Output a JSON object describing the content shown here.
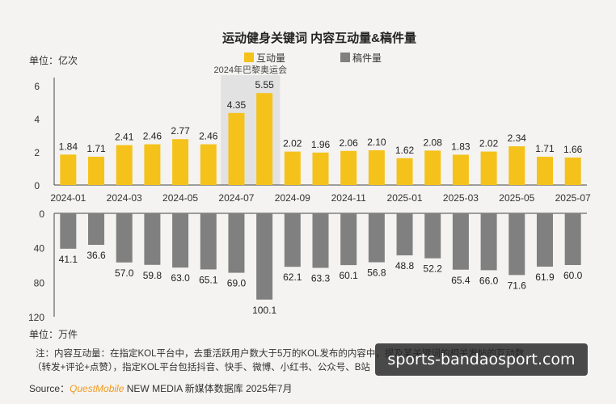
{
  "chart_data": {
    "type": "bar",
    "title": "运动健身关键词 内容互动量&稿件量",
    "categories": [
      "2024-01",
      "2024-02",
      "2024-03",
      "2024-04",
      "2024-05",
      "2024-06",
      "2024-07",
      "2024-08",
      "2024-09",
      "2024-10",
      "2024-11",
      "2024-12",
      "2025-01",
      "2025-02",
      "2025-03",
      "2025-04",
      "2025-05",
      "2025-06",
      "2025-07"
    ],
    "x_tick_labels": [
      "2024-01",
      "2024-03",
      "2024-05",
      "2024-07",
      "2024-09",
      "2024-11",
      "2025-01",
      "2025-03",
      "2025-05",
      "2025-07"
    ],
    "series": [
      {
        "name": "互动量",
        "unit": "单位：亿次",
        "color": "#f5c21b",
        "values": [
          1.84,
          1.71,
          2.41,
          2.46,
          2.77,
          2.46,
          4.35,
          5.55,
          2.02,
          1.96,
          2.06,
          2.1,
          1.62,
          2.08,
          1.83,
          2.02,
          2.34,
          1.71,
          1.66
        ],
        "ylim": [
          0,
          6
        ],
        "yticks": [
          "0",
          "2",
          "4",
          "6"
        ]
      },
      {
        "name": "稿件量",
        "unit": "单位：万件",
        "color": "#808080",
        "values": [
          41.1,
          36.6,
          57.0,
          59.8,
          63.0,
          65.1,
          69.0,
          100.1,
          62.1,
          63.3,
          60.1,
          56.8,
          48.8,
          52.2,
          65.4,
          66.0,
          71.6,
          61.9,
          60.0
        ],
        "ylim": [
          0,
          120
        ],
        "yticks": [
          "0",
          "40",
          "80",
          "120"
        ]
      }
    ],
    "annotation": "2024年巴黎奥运会",
    "highlight_categories": [
      "2024-07",
      "2024-08"
    ],
    "legend_position": "top-center"
  },
  "note": {
    "line1": "注：内容互动量：在指定KOL平台中，去重活跃用户数大于5万的KOL发布的内容中，提及某关键词的相关发帖的互动数",
    "line2": "（转发+评论+点赞），指定KOL平台包括抖音、快手、微博、小红书、公众号、B站",
    "source_prefix": "Source：",
    "source_brand": "QuestMobile",
    "source_suffix": " NEW MEDIA 新媒体数据库 2025年7月"
  },
  "watermark": "sports-bandaosport.com"
}
